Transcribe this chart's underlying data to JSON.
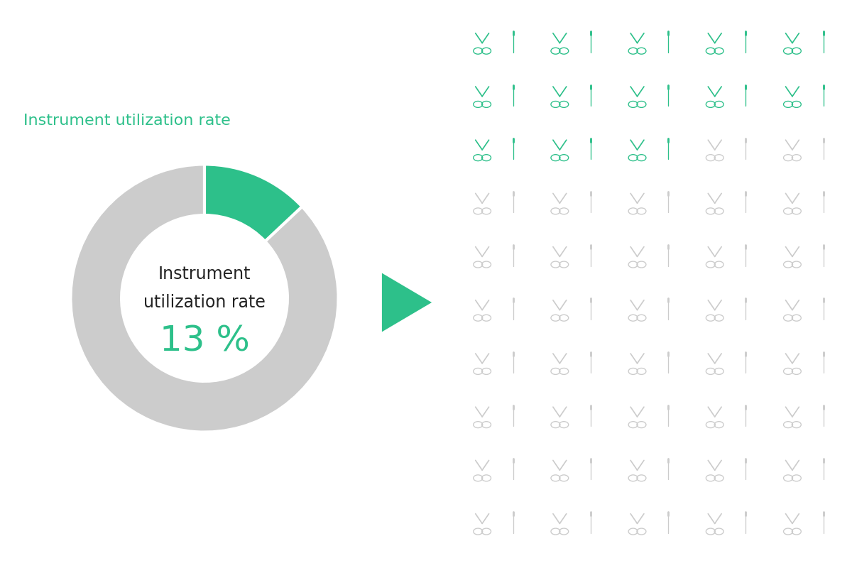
{
  "title": "Instrument utilization rate",
  "title_color": "#2DC08A",
  "center_text_line1": "Instrument",
  "center_text_line2": "utilization rate",
  "center_value": "13 %",
  "center_text_color": "#222222",
  "center_value_color": "#2DC08A",
  "utilization_pct": 13,
  "donut_color_used": "#2DC08A",
  "donut_color_unused": "#CCCCCC",
  "arrow_color": "#2DC08A",
  "icon_color_active": "#2DC08A",
  "icon_color_inactive": "#CCCCCC",
  "grid_cols": 5,
  "grid_rows": 10,
  "total_icons": 50,
  "active_icons": 13,
  "bg_color": "#FFFFFF"
}
